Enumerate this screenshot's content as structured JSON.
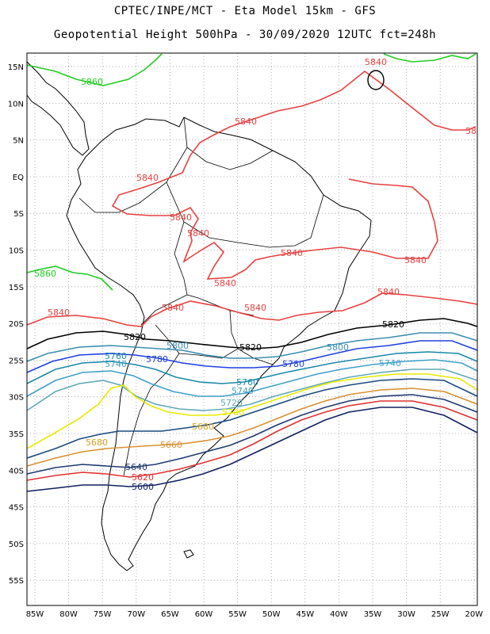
{
  "header": {
    "line1": "CPTEC/INPE/MCT -  Eta Model 15km - GFS",
    "line2": "Geopotential Height 500hPa - 30/09/2020 12UTC fct=248h"
  },
  "axes": {
    "lon_ticks": [
      "85W",
      "80W",
      "75W",
      "70W",
      "65W",
      "60W",
      "55W",
      "50W",
      "45W",
      "40W",
      "35W",
      "30W",
      "25W",
      "20W"
    ],
    "lat_ticks": [
      "15N",
      "10N",
      "5N",
      "EQ",
      "5S",
      "10S",
      "15S",
      "20S",
      "25S",
      "30S",
      "35S",
      "40S",
      "45S",
      "50S",
      "55S"
    ]
  },
  "colors": {
    "5860": "#22cc22",
    "5840": "#e84040",
    "5820": "#000000",
    "5800": "#3a8fb0",
    "5780": "#2040e0",
    "5760": "#1a8aa8",
    "5740": "#40a0c8",
    "5720": "#60a8b8",
    "5700": "#e8e800",
    "5680": "#d8a020",
    "5660": "#d89030",
    "5640": "#203870",
    "5620": "#e03030",
    "5600": "#102060"
  },
  "contour_labels": [
    {
      "text": "5860",
      "level": "5860"
    },
    {
      "text": "5860",
      "level": "5860"
    },
    {
      "text": "5840",
      "level": "5840"
    },
    {
      "text": "5840",
      "level": "5840"
    },
    {
      "text": "5840",
      "level": "5840"
    },
    {
      "text": "5840",
      "level": "5840"
    },
    {
      "text": "5840",
      "level": "5840"
    },
    {
      "text": "5840",
      "level": "5840"
    },
    {
      "text": "5840",
      "level": "5840"
    },
    {
      "text": "5840",
      "level": "5840"
    },
    {
      "text": "5840",
      "level": "5840"
    },
    {
      "text": "5840",
      "level": "5840"
    },
    {
      "text": "5840",
      "level": "5840"
    },
    {
      "text": "5840",
      "level": "5840"
    },
    {
      "text": "58",
      "level": "5840"
    },
    {
      "text": "5820",
      "level": "5820"
    },
    {
      "text": "5820",
      "level": "5820"
    },
    {
      "text": "5820",
      "level": "5820"
    },
    {
      "text": "5800",
      "level": "5800"
    },
    {
      "text": "5800",
      "level": "5800"
    },
    {
      "text": "5780",
      "level": "5780"
    },
    {
      "text": "5780",
      "level": "5780"
    },
    {
      "text": "5760",
      "level": "5760"
    },
    {
      "text": "5760",
      "level": "5760"
    },
    {
      "text": "5740",
      "level": "5740"
    },
    {
      "text": "5740",
      "level": "5740"
    },
    {
      "text": "5740",
      "level": "5740"
    },
    {
      "text": "5720",
      "level": "5720"
    },
    {
      "text": "5700",
      "level": "5700"
    },
    {
      "text": "5680",
      "level": "5680"
    },
    {
      "text": "5680",
      "level": "5680"
    },
    {
      "text": "5660",
      "level": "5660"
    },
    {
      "text": "5640",
      "level": "5640"
    },
    {
      "text": "5620",
      "level": "5620"
    },
    {
      "text": "5600",
      "level": "5600"
    }
  ]
}
